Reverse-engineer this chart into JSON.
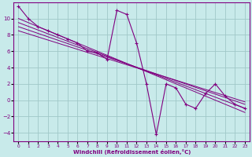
{
  "background_color": "#c8eaea",
  "grid_color": "#a0c8c8",
  "line_color": "#800080",
  "xlabel": "Windchill (Refroidissement éolien,°C)",
  "xlim": [
    -0.5,
    23.5
  ],
  "ylim": [
    -5,
    12
  ],
  "yticks": [
    -4,
    -2,
    0,
    2,
    4,
    6,
    8,
    10
  ],
  "xticks": [
    0,
    1,
    2,
    3,
    4,
    5,
    6,
    7,
    8,
    9,
    10,
    11,
    12,
    13,
    14,
    15,
    16,
    17,
    18,
    19,
    20,
    21,
    22,
    23
  ],
  "jagged_x": [
    0,
    1,
    2,
    3,
    4,
    5,
    6,
    7,
    8,
    9,
    10,
    11,
    12,
    13,
    14,
    15,
    16,
    17,
    18,
    19,
    20,
    21,
    22,
    23
  ],
  "jagged_y": [
    11.5,
    10.0,
    9.0,
    8.5,
    8.0,
    7.5,
    7.0,
    6.0,
    5.8,
    5.0,
    11.0,
    10.5,
    7.0,
    2.0,
    -4.2,
    2.0,
    1.5,
    -0.5,
    -1.0,
    0.8,
    2.0,
    0.5,
    -0.5,
    -1.0
  ],
  "line1_x": [
    0,
    23
  ],
  "line1_y": [
    10.0,
    -1.5
  ],
  "line2_x": [
    0,
    23
  ],
  "line2_y": [
    9.0,
    -1.0
  ],
  "line3_x": [
    1,
    14
  ],
  "line3_y": [
    9.0,
    3.0
  ],
  "line4_x": [
    2,
    15
  ],
  "line4_y": [
    8.5,
    2.5
  ]
}
